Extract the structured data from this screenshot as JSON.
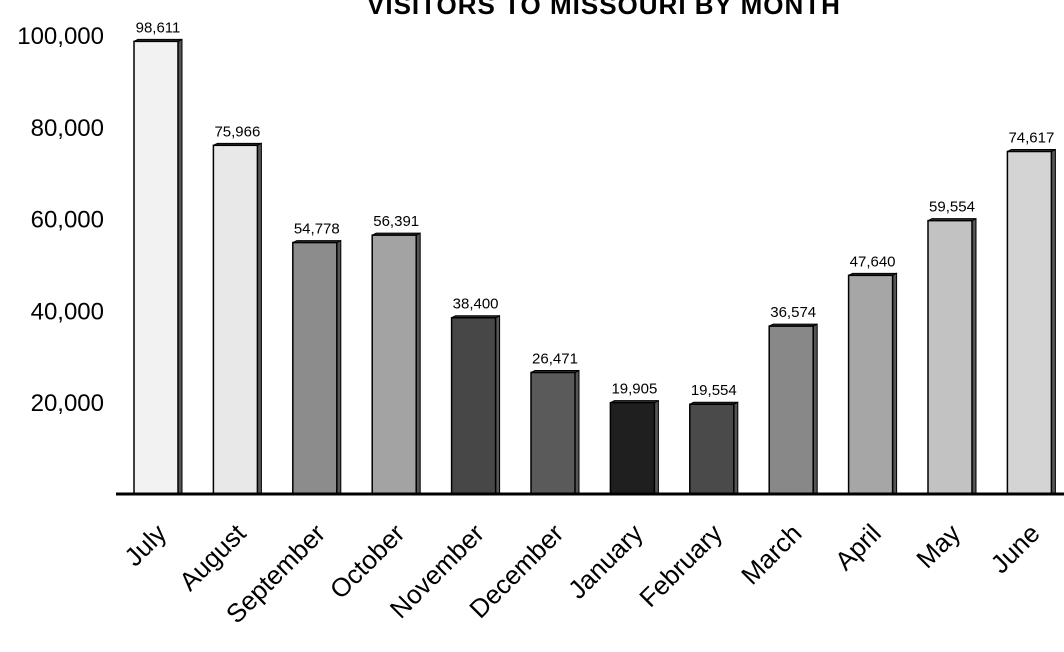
{
  "chart_data": {
    "type": "bar",
    "title": "VISITORS TO MISSOURI BY MONTH",
    "xlabel": "",
    "ylabel": "",
    "ylim": [
      0,
      100000
    ],
    "yticks": [
      "20,000",
      "40,000",
      "60,000",
      "80,000",
      "100,000"
    ],
    "ytick_values": [
      20000,
      40000,
      60000,
      80000,
      100000
    ],
    "grid": false,
    "legend": "none",
    "categories": [
      "July",
      "August",
      "September",
      "October",
      "November",
      "December",
      "January",
      "February",
      "March",
      "April",
      "May",
      "June"
    ],
    "values": [
      98611,
      75966,
      54778,
      56391,
      38400,
      26471,
      19905,
      19554,
      36574,
      47640,
      59554,
      74617
    ],
    "value_labels": [
      "98,611",
      "75,966",
      "54,778",
      "56,391",
      "38,400",
      "26,471",
      "19,905",
      "19,554",
      "36,574",
      "47,640",
      "59,554",
      "74,617"
    ],
    "bar_colors": [
      "#f2f2f2",
      "#e8e8e8",
      "#8c8c8c",
      "#a3a3a3",
      "#474747",
      "#5a5a5a",
      "#1f1f1f",
      "#4a4a4a",
      "#888888",
      "#a6a6a6",
      "#c2c2c2",
      "#d4d4d4"
    ]
  }
}
